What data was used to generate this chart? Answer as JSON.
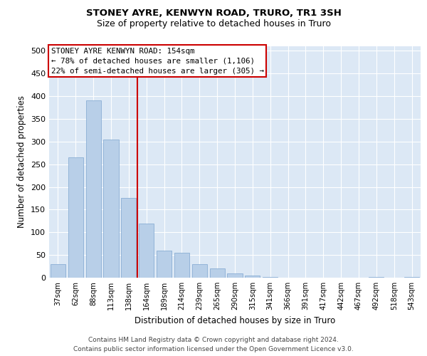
{
  "title1": "STONEY AYRE, KENWYN ROAD, TRURO, TR1 3SH",
  "title2": "Size of property relative to detached houses in Truro",
  "xlabel": "Distribution of detached houses by size in Truro",
  "ylabel": "Number of detached properties",
  "categories": [
    "37sqm",
    "62sqm",
    "88sqm",
    "113sqm",
    "138sqm",
    "164sqm",
    "189sqm",
    "214sqm",
    "239sqm",
    "265sqm",
    "290sqm",
    "315sqm",
    "341sqm",
    "366sqm",
    "391sqm",
    "417sqm",
    "442sqm",
    "467sqm",
    "492sqm",
    "518sqm",
    "543sqm"
  ],
  "values": [
    30,
    265,
    390,
    305,
    175,
    120,
    60,
    55,
    30,
    20,
    10,
    5,
    1,
    0,
    0,
    0,
    0,
    0,
    1,
    0,
    1
  ],
  "bar_color": "#b8cfe8",
  "bar_edgecolor": "#8aaed4",
  "background_color": "#dce8f5",
  "grid_color": "#ffffff",
  "vline_color": "#cc0000",
  "annotation_title": "STONEY AYRE KENWYN ROAD: 154sqm",
  "annotation_line1": "← 78% of detached houses are smaller (1,106)",
  "annotation_line2": "22% of semi-detached houses are larger (305) →",
  "annotation_box_edgecolor": "#cc0000",
  "ylim": [
    0,
    510
  ],
  "yticks": [
    0,
    50,
    100,
    150,
    200,
    250,
    300,
    350,
    400,
    450,
    500
  ],
  "footer1": "Contains HM Land Registry data © Crown copyright and database right 2024.",
  "footer2": "Contains public sector information licensed under the Open Government Licence v3.0.",
  "title1_fontsize": 9.5,
  "title2_fontsize": 9,
  "bar_width": 0.85
}
